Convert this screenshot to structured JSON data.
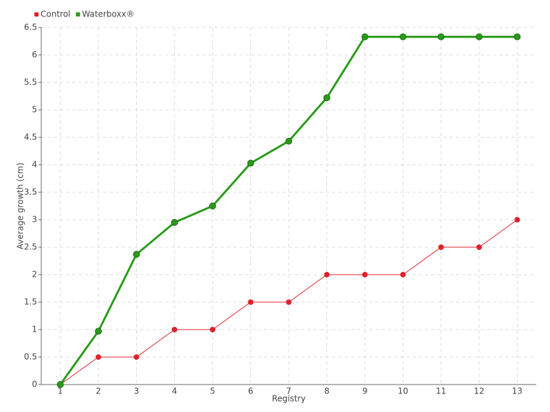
{
  "chart_data": {
    "type": "line",
    "xlabel": "Registry",
    "ylabel": "Average growth (cm)",
    "categories": [
      "1",
      "2",
      "3",
      "4",
      "5",
      "6",
      "7",
      "8",
      "9",
      "10",
      "11",
      "12",
      "13"
    ],
    "series": [
      {
        "name": "Control",
        "color": "#e0202a",
        "values": [
          0,
          0.5,
          0.5,
          1,
          1,
          1.5,
          1.5,
          2,
          2,
          2,
          2.5,
          2.5,
          3
        ]
      },
      {
        "name": "Waterboxx®",
        "color": "#2a9a1a",
        "values": [
          0,
          0.97,
          2.37,
          2.95,
          3.25,
          4.03,
          4.43,
          5.22,
          6.33,
          6.33,
          6.33,
          6.33,
          6.33
        ]
      }
    ],
    "ylim": [
      0,
      6.5
    ],
    "yticks": [
      0,
      0.5,
      1,
      1.5,
      2,
      2.5,
      3,
      3.5,
      4,
      4.5,
      5,
      5.5,
      6,
      6.5
    ],
    "grid": true,
    "legend": "top-left"
  }
}
